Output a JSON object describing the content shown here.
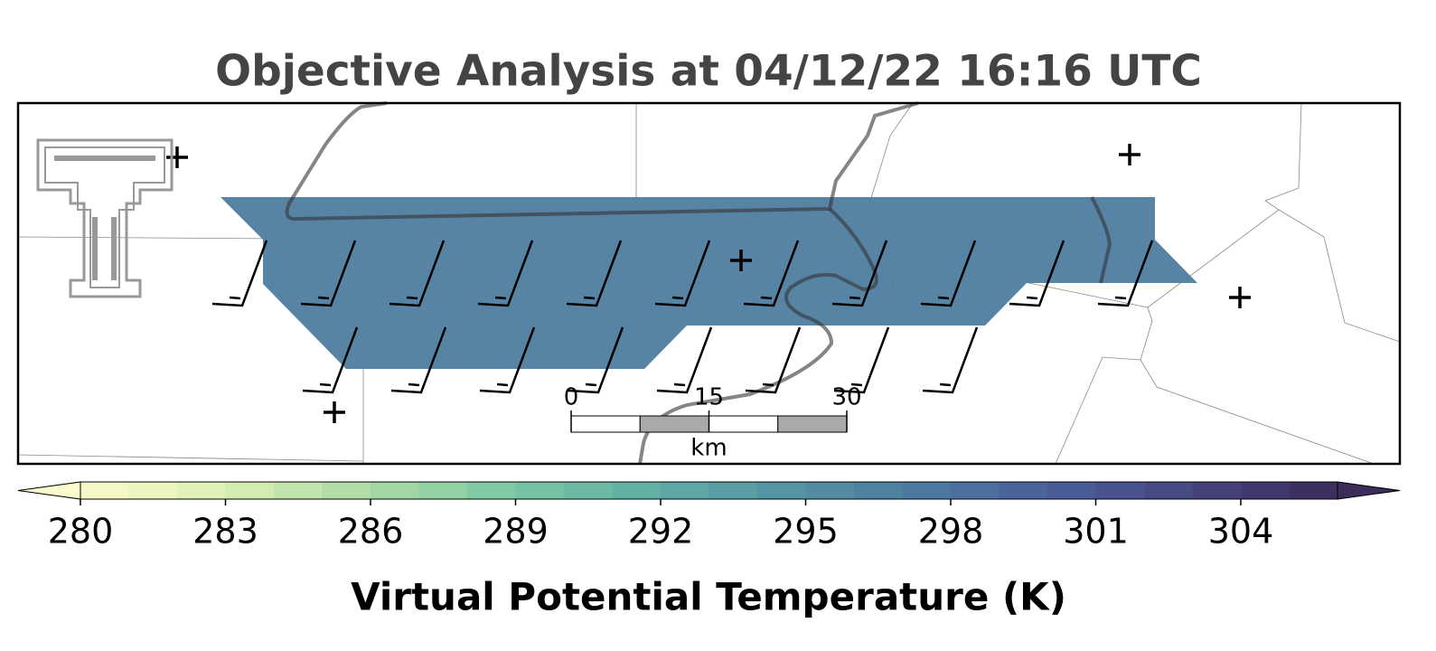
{
  "title": "Objective Analysis at 04/12/22 16:16 UTC",
  "field": {
    "value": 297
  },
  "scale_bar": {
    "ticks": [
      0,
      15,
      30
    ],
    "unit": "km"
  },
  "colorbar": {
    "label": "Virtual Potential Temperature (K)",
    "lim": [
      280,
      306
    ],
    "ticks": [
      280,
      283,
      286,
      289,
      292,
      295,
      298,
      301,
      304
    ],
    "colors": [
      "#fbfacb",
      "#dcf0b6",
      "#aedba5",
      "#7dcaa3",
      "#62b0a5",
      "#5595a3",
      "#4d7aa0",
      "#4a5e9a",
      "#47447e",
      "#3b2c5a"
    ],
    "extend": "both"
  }
}
